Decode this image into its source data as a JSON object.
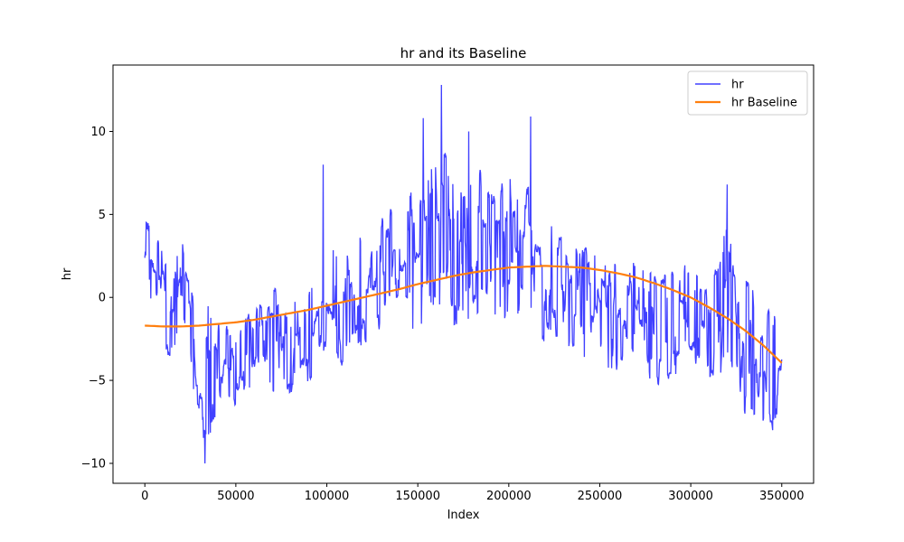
{
  "chart_data": {
    "type": "line",
    "title": "hr and its Baseline",
    "xlabel": "Index",
    "ylabel": "hr",
    "xlim": [
      -17500,
      367500
    ],
    "ylim": [
      -11.2,
      14.0
    ],
    "xticks": [
      0,
      50000,
      100000,
      150000,
      200000,
      250000,
      300000,
      350000
    ],
    "xtick_labels": [
      "0",
      "50000",
      "100000",
      "150000",
      "200000",
      "250000",
      "300000",
      "350000"
    ],
    "yticks": [
      -10,
      -5,
      0,
      5,
      10
    ],
    "ytick_labels": [
      "−10",
      "−5",
      "0",
      "5",
      "10"
    ],
    "grid": false,
    "legend_position": "top-right",
    "series": [
      {
        "name": "hr",
        "color": "#4040ff",
        "style": "noisy signal",
        "x": [
          0,
          5000,
          10000,
          15000,
          20000,
          25000,
          30000,
          35000,
          40000,
          45000,
          50000,
          55000,
          60000,
          65000,
          70000,
          75000,
          80000,
          85000,
          90000,
          95000,
          100000,
          105000,
          110000,
          115000,
          120000,
          125000,
          130000,
          135000,
          140000,
          145000,
          150000,
          155000,
          160000,
          165000,
          170000,
          175000,
          180000,
          185000,
          190000,
          195000,
          200000,
          205000,
          210000,
          215000,
          220000,
          225000,
          230000,
          235000,
          240000,
          245000,
          250000,
          255000,
          260000,
          265000,
          270000,
          275000,
          280000,
          285000,
          290000,
          295000,
          300000,
          305000,
          310000,
          315000,
          320000,
          325000,
          330000,
          335000,
          340000,
          345000,
          350000
        ],
        "y": [
          2.5,
          1.8,
          0.5,
          -1.0,
          0.2,
          -1.5,
          -4.0,
          -4.5,
          -3.8,
          -4.0,
          -4.5,
          -3.5,
          -3.0,
          -2.5,
          -3.0,
          -2.0,
          -2.5,
          -2.0,
          -1.8,
          -1.0,
          0.5,
          -0.5,
          -1.0,
          0.0,
          0.5,
          0.5,
          1.5,
          2.0,
          1.8,
          2.0,
          2.5,
          3.0,
          4.0,
          3.5,
          2.5,
          2.0,
          2.8,
          3.5,
          3.0,
          2.5,
          3.0,
          3.0,
          2.5,
          2.0,
          1.5,
          1.0,
          0.5,
          0.0,
          -0.5,
          0.0,
          -1.0,
          -1.5,
          -1.0,
          -0.5,
          -1.5,
          -1.5,
          -2.0,
          -2.0,
          -1.5,
          -1.0,
          -2.0,
          -1.5,
          -2.0,
          -1.0,
          0.0,
          -2.0,
          -3.0,
          -4.0,
          -3.5,
          -4.5,
          -3.0
        ],
        "amplitude": [
          3.0,
          2.5,
          2.5,
          3.0,
          3.0,
          3.0,
          3.5,
          4.0,
          3.0,
          2.5,
          2.5,
          2.5,
          2.5,
          2.5,
          3.0,
          3.5,
          3.0,
          2.5,
          3.0,
          3.0,
          4.0,
          3.5,
          3.5,
          3.0,
          3.0,
          2.5,
          3.0,
          3.0,
          3.0,
          3.5,
          4.0,
          4.0,
          5.0,
          5.0,
          4.5,
          4.0,
          4.0,
          4.0,
          4.0,
          4.0,
          4.5,
          5.0,
          4.5,
          4.0,
          3.5,
          3.5,
          3.5,
          3.5,
          3.5,
          3.5,
          3.5,
          3.5,
          4.0,
          3.5,
          3.5,
          3.5,
          3.5,
          3.5,
          3.5,
          3.5,
          3.0,
          3.0,
          3.5,
          4.0,
          4.0,
          4.0,
          4.0,
          4.0,
          3.5,
          4.0,
          4.0
        ],
        "peaks": [
          {
            "x": 33000,
            "y": -10.0
          },
          {
            "x": 98000,
            "y": 8.0
          },
          {
            "x": 153000,
            "y": 10.8
          },
          {
            "x": 163000,
            "y": 12.8
          },
          {
            "x": 178000,
            "y": 10.0
          },
          {
            "x": 212000,
            "y": 10.9
          },
          {
            "x": 320000,
            "y": 6.8
          },
          {
            "x": 345000,
            "y": -8.0
          }
        ]
      },
      {
        "name": "hr Baseline",
        "color": "#ff7f0e",
        "style": "smooth",
        "x": [
          0,
          10000,
          20000,
          30000,
          40000,
          50000,
          60000,
          70000,
          80000,
          90000,
          100000,
          110000,
          120000,
          130000,
          140000,
          150000,
          160000,
          170000,
          180000,
          190000,
          200000,
          210000,
          220000,
          230000,
          240000,
          250000,
          260000,
          270000,
          280000,
          290000,
          300000,
          310000,
          320000,
          330000,
          340000,
          350000
        ],
        "y": [
          -1.7,
          -1.75,
          -1.75,
          -1.7,
          -1.6,
          -1.5,
          -1.35,
          -1.15,
          -0.95,
          -0.75,
          -0.5,
          -0.25,
          0.0,
          0.25,
          0.5,
          0.8,
          1.05,
          1.3,
          1.5,
          1.65,
          1.8,
          1.85,
          1.9,
          1.85,
          1.8,
          1.65,
          1.45,
          1.2,
          0.85,
          0.45,
          0.0,
          -0.6,
          -1.25,
          -2.0,
          -2.9,
          -3.95
        ]
      }
    ]
  }
}
